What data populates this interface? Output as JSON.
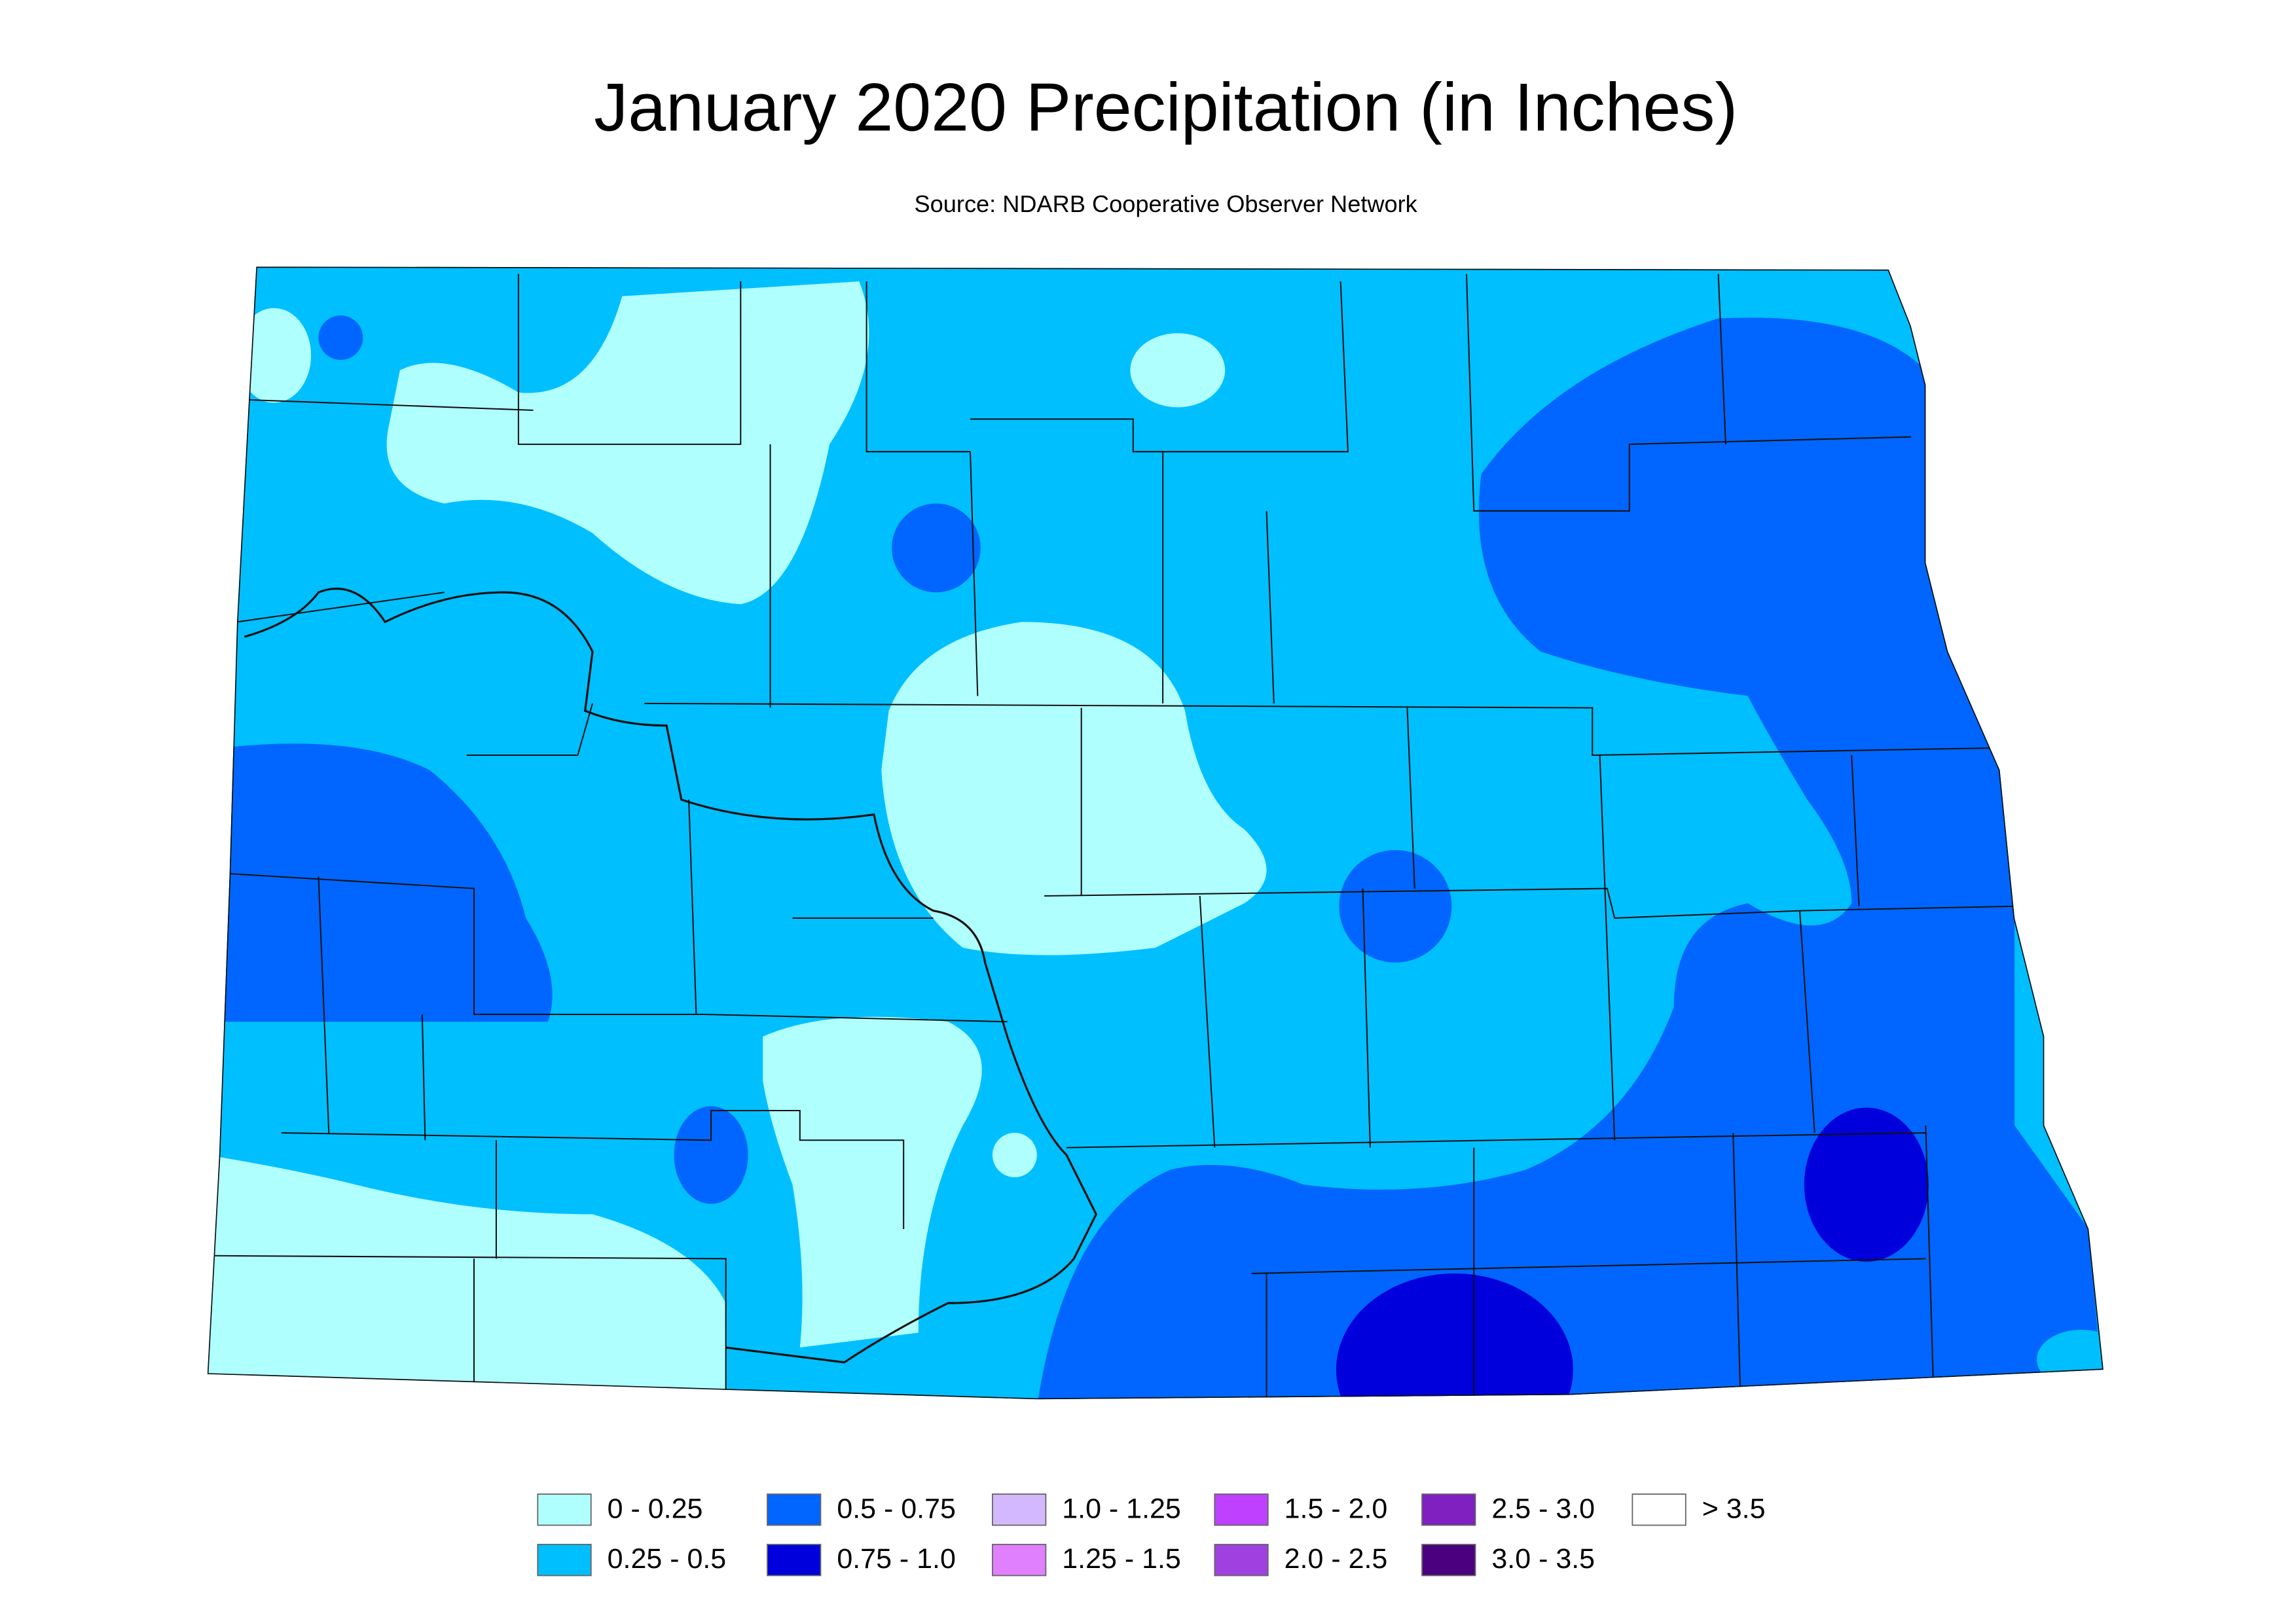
{
  "header": {
    "title": "January 2020 Precipitation (in Inches)",
    "subtitle": "Source: NDARB Cooperative Observer Network"
  },
  "legend": {
    "items": [
      {
        "label": "0 - 0.25",
        "color": "#b0ffff"
      },
      {
        "label": "0.25 - 0.5",
        "color": "#00bfff"
      },
      {
        "label": "0.5 - 0.75",
        "color": "#0066ff"
      },
      {
        "label": "0.75 - 1.0",
        "color": "#0000dd"
      },
      {
        "label": "1.0 - 1.25",
        "color": "#d4b8ff"
      },
      {
        "label": "1.25 - 1.5",
        "color": "#e080ff"
      },
      {
        "label": "1.5 - 2.0",
        "color": "#c040ff"
      },
      {
        "label": "2.0 - 2.5",
        "color": "#a040e0"
      },
      {
        "label": "2.5 - 3.0",
        "color": "#8020c0"
      },
      {
        "label": "3.0 - 3.5",
        "color": "#4b0080"
      },
      {
        "label": "> 3.5",
        "color": "#ffffff"
      }
    ]
  }
}
